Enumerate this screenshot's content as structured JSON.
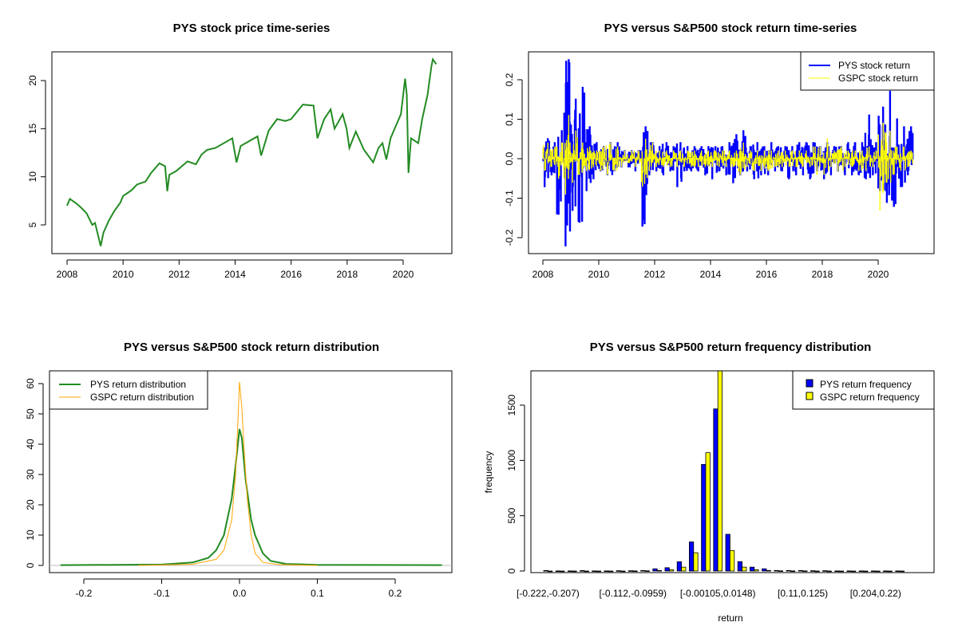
{
  "colors": {
    "price": "#228B22",
    "pys_return": "#0000FF",
    "gspc_return": "#FFFF00",
    "pys_density": "#228B22",
    "gspc_density": "#FFA500",
    "zero_line": "#BEBEBE"
  },
  "chart_data": [
    {
      "type": "line",
      "title": "PYS stock price time-series",
      "xlabel": "",
      "ylabel": "",
      "xlim": [
        2007.5,
        2021.7
      ],
      "ylim": [
        2.2,
        22.8
      ],
      "xticks": [
        "2008",
        "2010",
        "2012",
        "2014",
        "2016",
        "2018",
        "2020"
      ],
      "yticks": [
        "5",
        "10",
        "15",
        "20"
      ],
      "x": [
        2008.0,
        2008.1,
        2008.3,
        2008.5,
        2008.7,
        2008.9,
        2009.0,
        2009.1,
        2009.2,
        2009.3,
        2009.5,
        2009.7,
        2009.9,
        2010.0,
        2010.3,
        2010.5,
        2010.8,
        2011.0,
        2011.3,
        2011.5,
        2011.58,
        2011.65,
        2011.9,
        2012.1,
        2012.3,
        2012.6,
        2012.8,
        2013.0,
        2013.3,
        2013.6,
        2013.9,
        2014.05,
        2014.2,
        2014.5,
        2014.8,
        2014.93,
        2015.2,
        2015.5,
        2015.8,
        2016.0,
        2016.42,
        2016.8,
        2016.94,
        2017.18,
        2017.41,
        2017.55,
        2017.84,
        2017.98,
        2018.08,
        2018.31,
        2018.6,
        2018.93,
        2019.12,
        2019.26,
        2019.4,
        2019.55,
        2019.74,
        2019.92,
        2020.07,
        2020.13,
        2020.19,
        2020.28,
        2020.54,
        2020.68,
        2020.87,
        2021.01,
        2021.06,
        2021.18
      ],
      "y": [
        7.0,
        7.7,
        7.3,
        6.8,
        6.2,
        5.0,
        5.2,
        4.0,
        2.8,
        4.2,
        5.5,
        6.5,
        7.3,
        8.0,
        8.6,
        9.2,
        9.5,
        10.4,
        11.4,
        11.1,
        8.5,
        10.2,
        10.6,
        11.1,
        11.6,
        11.3,
        12.3,
        12.8,
        13.0,
        13.5,
        14.0,
        11.5,
        13.2,
        13.7,
        14.2,
        12.2,
        14.8,
        16.0,
        15.8,
        16.0,
        17.5,
        17.4,
        14.0,
        16.0,
        17.0,
        15.0,
        16.5,
        15.0,
        13.0,
        14.7,
        12.8,
        11.5,
        13.0,
        13.5,
        11.8,
        14.0,
        15.3,
        16.5,
        20.2,
        18.5,
        10.4,
        14.0,
        13.5,
        16.0,
        18.5,
        21.5,
        22.2,
        21.7
      ]
    },
    {
      "type": "line",
      "title": "PYS versus S&P500 stock return time-series",
      "xlabel": "",
      "ylabel": "",
      "xlim": [
        2007.5,
        2021.7
      ],
      "ylim": [
        -0.24,
        0.27
      ],
      "xticks": [
        "2008",
        "2010",
        "2012",
        "2014",
        "2016",
        "2018",
        "2020"
      ],
      "yticks": [
        "-0.2",
        "-0.1",
        "0.0",
        "0.1",
        "0.2"
      ],
      "legend": {
        "position": "top-right",
        "entries": [
          "PYS stock return",
          "GSPC stock return"
        ]
      },
      "period": "quarterly range of daily returns, 2008 Q1 - 2021 Q1",
      "series": [
        {
          "name": "PYS stock return",
          "low": [
            -0.07,
            -0.04,
            -0.14,
            -0.22,
            -0.13,
            -0.16,
            -0.08,
            -0.05,
            -0.03,
            -0.04,
            -0.03,
            -0.02,
            -0.02,
            -0.03,
            -0.17,
            -0.04,
            -0.03,
            -0.04,
            -0.03,
            -0.07,
            -0.03,
            -0.03,
            -0.03,
            -0.04,
            -0.05,
            -0.03,
            -0.04,
            -0.06,
            -0.04,
            -0.03,
            -0.05,
            -0.04,
            -0.04,
            -0.03,
            -0.03,
            -0.05,
            -0.04,
            -0.04,
            -0.05,
            -0.03,
            -0.05,
            -0.04,
            -0.03,
            -0.04,
            -0.04,
            -0.04,
            -0.05,
            -0.04,
            -0.08,
            -0.11,
            -0.12,
            -0.07,
            -0.04
          ],
          "high": [
            0.05,
            0.04,
            0.07,
            0.25,
            0.15,
            0.18,
            0.08,
            0.04,
            0.03,
            0.04,
            0.04,
            0.02,
            0.02,
            0.02,
            0.08,
            0.04,
            0.03,
            0.04,
            0.03,
            0.04,
            0.03,
            0.03,
            0.03,
            0.03,
            0.03,
            0.03,
            0.04,
            0.06,
            0.07,
            0.03,
            0.04,
            0.03,
            0.04,
            0.03,
            0.03,
            0.03,
            0.04,
            0.04,
            0.04,
            0.03,
            0.04,
            0.03,
            0.03,
            0.04,
            0.04,
            0.04,
            0.11,
            0.04,
            0.13,
            0.17,
            0.1,
            0.08,
            0.08
          ]
        },
        {
          "name": "GSPC stock return",
          "low": [
            -0.03,
            -0.02,
            -0.05,
            -0.09,
            -0.06,
            -0.04,
            -0.03,
            -0.02,
            -0.03,
            -0.04,
            -0.03,
            -0.02,
            -0.01,
            -0.02,
            -0.07,
            -0.03,
            -0.02,
            -0.02,
            -0.02,
            -0.02,
            -0.02,
            -0.02,
            -0.02,
            -0.02,
            -0.02,
            -0.02,
            -0.02,
            -0.02,
            -0.04,
            -0.02,
            -0.03,
            -0.03,
            -0.03,
            -0.02,
            -0.02,
            -0.02,
            -0.02,
            -0.02,
            -0.02,
            -0.04,
            -0.04,
            -0.02,
            -0.03,
            -0.02,
            -0.02,
            -0.03,
            -0.03,
            -0.02,
            -0.13,
            -0.06,
            -0.04,
            -0.03,
            -0.02
          ],
          "high": [
            0.04,
            0.03,
            0.04,
            0.11,
            0.07,
            0.04,
            0.03,
            0.02,
            0.03,
            0.04,
            0.03,
            0.02,
            0.02,
            0.02,
            0.05,
            0.04,
            0.02,
            0.02,
            0.02,
            0.02,
            0.02,
            0.02,
            0.02,
            0.02,
            0.02,
            0.02,
            0.02,
            0.02,
            0.04,
            0.02,
            0.02,
            0.02,
            0.02,
            0.02,
            0.02,
            0.02,
            0.02,
            0.02,
            0.03,
            0.03,
            0.05,
            0.02,
            0.03,
            0.02,
            0.02,
            0.02,
            0.03,
            0.02,
            0.09,
            0.07,
            0.03,
            0.03,
            0.02
          ]
        }
      ]
    },
    {
      "type": "line",
      "title": "PYS versus S&P500 stock return distribution",
      "xlabel": "",
      "ylabel": "",
      "xlim": [
        -0.252,
        0.28
      ],
      "ylim": [
        -2.3,
        64
      ],
      "xticks": [
        "-0.2",
        "-0.1",
        "0.0",
        "0.1",
        "0.2"
      ],
      "yticks": [
        "0",
        "10",
        "20",
        "30",
        "40",
        "50",
        "60"
      ],
      "legend": {
        "position": "top-left",
        "entries": [
          "PYS return distribution",
          "GSPC return distribution"
        ]
      },
      "series": [
        {
          "name": "PYS return distribution",
          "x": [
            -0.23,
            -0.1,
            -0.06,
            -0.04,
            -0.03,
            -0.02,
            -0.01,
            -0.005,
            0,
            0.003,
            0.008,
            0.015,
            0.02,
            0.03,
            0.04,
            0.06,
            0.1,
            0.26
          ],
          "y": [
            0.1,
            0.3,
            1,
            2.5,
            5,
            10,
            22,
            33,
            45,
            42,
            28,
            15,
            10,
            4,
            1.5,
            0.5,
            0.2,
            0.1
          ]
        },
        {
          "name": "GSPC return distribution",
          "x": [
            -0.13,
            -0.06,
            -0.03,
            -0.02,
            -0.01,
            -0.005,
            -0.002,
            0,
            0.003,
            0.006,
            0.01,
            0.015,
            0.02,
            0.03,
            0.05,
            0.1
          ],
          "y": [
            0,
            0.4,
            2,
            5,
            15,
            30,
            48,
            60.5,
            52,
            38,
            22,
            10,
            4,
            1,
            0.3,
            0
          ]
        }
      ]
    },
    {
      "type": "bar",
      "title": "PYS versus S&P500 return frequency distribution",
      "xlabel": "return",
      "ylabel": "frequency",
      "ylim": [
        0,
        1810
      ],
      "yticks": [
        "0",
        "500",
        "1000",
        "1500"
      ],
      "categories": [
        "[-0.222,-0.207)",
        "",
        "",
        "",
        "",
        "",
        "",
        "[-0.112,-0.0959)",
        "",
        "",
        "",
        "",
        "",
        "",
        "[-0.00105,0.0148)",
        "",
        "",
        "",
        "",
        "",
        "",
        "[0.11,0.125)",
        "",
        "",
        "",
        "",
        "",
        "[0.204,0.22)",
        "",
        ""
      ],
      "legend": {
        "position": "top-right",
        "entries": [
          "PYS return frequency",
          "GSPC return frequency"
        ]
      },
      "series": [
        {
          "name": "PYS return frequency",
          "color": "#0000FF",
          "values": [
            5,
            1,
            1,
            4,
            1,
            1,
            3,
            3,
            5,
            20,
            30,
            84,
            263,
            964,
            1466,
            332,
            85,
            35,
            20,
            5,
            5,
            5,
            3,
            3,
            1,
            1,
            1,
            1,
            1,
            1
          ]
        },
        {
          "name": "GSPC return frequency",
          "color": "#FFFF00",
          "values": [
            0,
            0,
            0,
            0,
            0,
            0,
            0,
            1,
            2,
            5,
            12,
            35,
            165,
            1070,
            1900,
            185,
            35,
            12,
            5,
            2,
            1,
            1,
            0,
            0,
            0,
            0,
            0,
            0,
            0,
            0
          ]
        }
      ]
    }
  ]
}
